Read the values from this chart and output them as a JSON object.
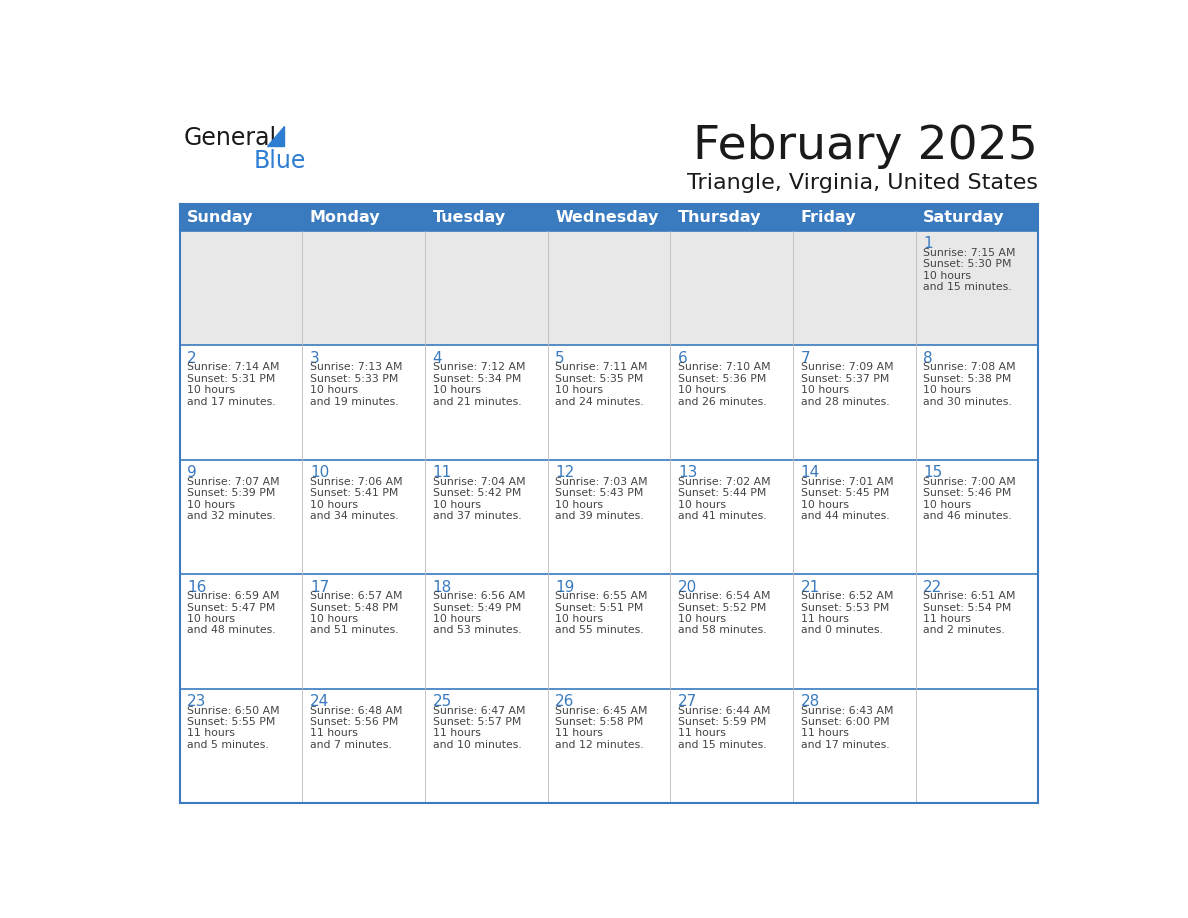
{
  "title": "February 2025",
  "subtitle": "Triangle, Virginia, United States",
  "header_bg_color": "#3a7abf",
  "header_text_color": "#ffffff",
  "week1_bg_color": "#e8e8e8",
  "cell_bg_color": "#ffffff",
  "day_number_color": "#3a7abf",
  "text_color": "#444444",
  "border_color": "#3a7abf",
  "grid_color": "#bbbbbb",
  "days_of_week": [
    "Sunday",
    "Monday",
    "Tuesday",
    "Wednesday",
    "Thursday",
    "Friday",
    "Saturday"
  ],
  "calendar_data": [
    [
      {
        "day": null
      },
      {
        "day": null
      },
      {
        "day": null
      },
      {
        "day": null
      },
      {
        "day": null
      },
      {
        "day": null
      },
      {
        "day": 1,
        "sunrise": "7:15 AM",
        "sunset": "5:30 PM",
        "daylight": "10 hours and 15 minutes."
      }
    ],
    [
      {
        "day": 2,
        "sunrise": "7:14 AM",
        "sunset": "5:31 PM",
        "daylight": "10 hours and 17 minutes."
      },
      {
        "day": 3,
        "sunrise": "7:13 AM",
        "sunset": "5:33 PM",
        "daylight": "10 hours and 19 minutes."
      },
      {
        "day": 4,
        "sunrise": "7:12 AM",
        "sunset": "5:34 PM",
        "daylight": "10 hours and 21 minutes."
      },
      {
        "day": 5,
        "sunrise": "7:11 AM",
        "sunset": "5:35 PM",
        "daylight": "10 hours and 24 minutes."
      },
      {
        "day": 6,
        "sunrise": "7:10 AM",
        "sunset": "5:36 PM",
        "daylight": "10 hours and 26 minutes."
      },
      {
        "day": 7,
        "sunrise": "7:09 AM",
        "sunset": "5:37 PM",
        "daylight": "10 hours and 28 minutes."
      },
      {
        "day": 8,
        "sunrise": "7:08 AM",
        "sunset": "5:38 PM",
        "daylight": "10 hours and 30 minutes."
      }
    ],
    [
      {
        "day": 9,
        "sunrise": "7:07 AM",
        "sunset": "5:39 PM",
        "daylight": "10 hours and 32 minutes."
      },
      {
        "day": 10,
        "sunrise": "7:06 AM",
        "sunset": "5:41 PM",
        "daylight": "10 hours and 34 minutes."
      },
      {
        "day": 11,
        "sunrise": "7:04 AM",
        "sunset": "5:42 PM",
        "daylight": "10 hours and 37 minutes."
      },
      {
        "day": 12,
        "sunrise": "7:03 AM",
        "sunset": "5:43 PM",
        "daylight": "10 hours and 39 minutes."
      },
      {
        "day": 13,
        "sunrise": "7:02 AM",
        "sunset": "5:44 PM",
        "daylight": "10 hours and 41 minutes."
      },
      {
        "day": 14,
        "sunrise": "7:01 AM",
        "sunset": "5:45 PM",
        "daylight": "10 hours and 44 minutes."
      },
      {
        "day": 15,
        "sunrise": "7:00 AM",
        "sunset": "5:46 PM",
        "daylight": "10 hours and 46 minutes."
      }
    ],
    [
      {
        "day": 16,
        "sunrise": "6:59 AM",
        "sunset": "5:47 PM",
        "daylight": "10 hours and 48 minutes."
      },
      {
        "day": 17,
        "sunrise": "6:57 AM",
        "sunset": "5:48 PM",
        "daylight": "10 hours and 51 minutes."
      },
      {
        "day": 18,
        "sunrise": "6:56 AM",
        "sunset": "5:49 PM",
        "daylight": "10 hours and 53 minutes."
      },
      {
        "day": 19,
        "sunrise": "6:55 AM",
        "sunset": "5:51 PM",
        "daylight": "10 hours and 55 minutes."
      },
      {
        "day": 20,
        "sunrise": "6:54 AM",
        "sunset": "5:52 PM",
        "daylight": "10 hours and 58 minutes."
      },
      {
        "day": 21,
        "sunrise": "6:52 AM",
        "sunset": "5:53 PM",
        "daylight": "11 hours and 0 minutes."
      },
      {
        "day": 22,
        "sunrise": "6:51 AM",
        "sunset": "5:54 PM",
        "daylight": "11 hours and 2 minutes."
      }
    ],
    [
      {
        "day": 23,
        "sunrise": "6:50 AM",
        "sunset": "5:55 PM",
        "daylight": "11 hours and 5 minutes."
      },
      {
        "day": 24,
        "sunrise": "6:48 AM",
        "sunset": "5:56 PM",
        "daylight": "11 hours and 7 minutes."
      },
      {
        "day": 25,
        "sunrise": "6:47 AM",
        "sunset": "5:57 PM",
        "daylight": "11 hours and 10 minutes."
      },
      {
        "day": 26,
        "sunrise": "6:45 AM",
        "sunset": "5:58 PM",
        "daylight": "11 hours and 12 minutes."
      },
      {
        "day": 27,
        "sunrise": "6:44 AM",
        "sunset": "5:59 PM",
        "daylight": "11 hours and 15 minutes."
      },
      {
        "day": 28,
        "sunrise": "6:43 AM",
        "sunset": "6:00 PM",
        "daylight": "11 hours and 17 minutes."
      },
      {
        "day": null
      }
    ]
  ]
}
